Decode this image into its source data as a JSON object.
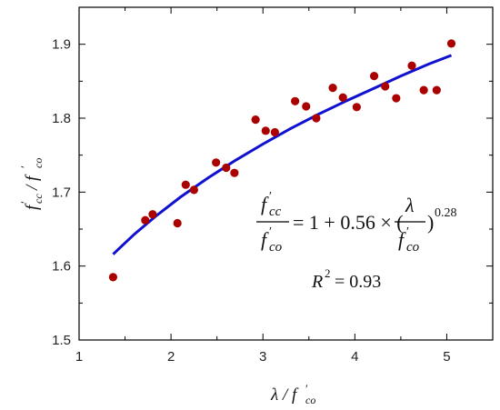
{
  "chart_data": {
    "type": "scatter",
    "xlabel": "λ / f′co",
    "ylabel": "f′cc / f′co",
    "xlim": [
      1,
      5.5
    ],
    "ylim": [
      1.5,
      1.95
    ],
    "xticks": [
      "1",
      "2",
      "3",
      "4",
      "5"
    ],
    "yticks": [
      "1.5",
      "1.6",
      "1.7",
      "1.8",
      "1.9"
    ],
    "grid": false,
    "series": [
      {
        "kind": "points",
        "color": "#aa0000",
        "x": [
          1.37,
          1.72,
          1.8,
          2.07,
          2.16,
          2.25,
          2.49,
          2.6,
          2.69,
          2.92,
          3.03,
          3.13,
          3.35,
          3.47,
          3.58,
          3.76,
          3.87,
          4.02,
          4.21,
          4.33,
          4.45,
          4.62,
          4.75,
          4.89,
          5.05
        ],
        "y": [
          1.585,
          1.662,
          1.67,
          1.658,
          1.71,
          1.703,
          1.74,
          1.733,
          1.726,
          1.798,
          1.783,
          1.781,
          1.823,
          1.816,
          1.8,
          1.841,
          1.828,
          1.815,
          1.857,
          1.843,
          1.827,
          1.871,
          1.838,
          1.838,
          1.901
        ]
      },
      {
        "kind": "fit",
        "color": "#1010d0",
        "x": [
          1.37,
          1.6,
          1.85,
          2.1,
          2.4,
          2.7,
          3.0,
          3.3,
          3.6,
          3.9,
          4.2,
          4.5,
          4.8,
          5.05
        ],
        "y": [
          1.616,
          1.643,
          1.669,
          1.693,
          1.719,
          1.743,
          1.765,
          1.786,
          1.805,
          1.823,
          1.84,
          1.857,
          1.873,
          1.885
        ]
      }
    ],
    "annotations": {
      "equation": {
        "lhs_num": "f′cc",
        "lhs_den": "f′co",
        "rhs": "= 1 + 0.56 × (",
        "rhs_num": "λ",
        "rhs_den": "f′co",
        "close": ")",
        "exponent": "0.28"
      },
      "r2_label": "R² = 0.93"
    }
  }
}
